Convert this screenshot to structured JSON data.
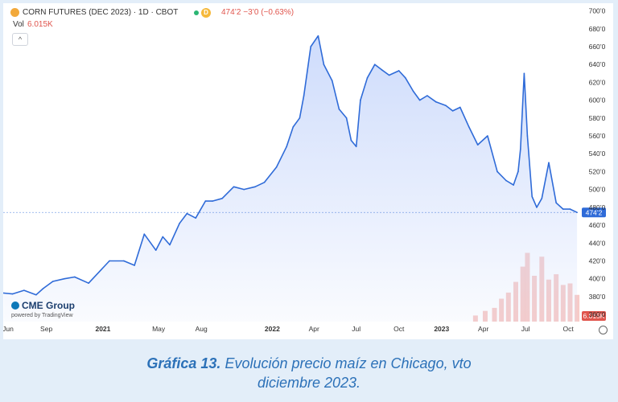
{
  "header": {
    "title": "CORN FUTURES (DEC 2023) · 1D · CBOT",
    "badge": "D",
    "price_change": "474’2 −3’0 (−0.63%)",
    "vol_label": "Vol",
    "vol_value": "6.015K",
    "collapse_symbol": "^"
  },
  "logo": {
    "name": "CME Group",
    "powered": "powered by TradingView"
  },
  "caption": {
    "prefix": "Gráfica 13.",
    "text_line1": " Evolución precio maíz en Chicago, vto",
    "text_line2": "diciembre 2023."
  },
  "colors": {
    "line": "#2f6bd8",
    "area": "#c9d8fb",
    "volume": "#f4b9b6",
    "price_tag": "#2f6bd8",
    "volume_tag": "#e0554d"
  },
  "chart_data": {
    "type": "area",
    "title": "CORN FUTURES (DEC 2023) · 1D · CBOT",
    "ylim": [
      352,
      705
    ],
    "y_ticks": [
      "700’0",
      "680’0",
      "660’0",
      "640’0",
      "620’0",
      "600’0",
      "580’0",
      "560’0",
      "540’0",
      "520’0",
      "500’0",
      "480’0",
      "460’0",
      "440’0",
      "420’0",
      "400’0",
      "380’0",
      "360’0"
    ],
    "y_tick_values": [
      700,
      680,
      660,
      640,
      620,
      600,
      580,
      560,
      540,
      520,
      500,
      480,
      460,
      440,
      420,
      400,
      380,
      360
    ],
    "x_ticks": [
      "Jun",
      "Sep",
      "2021",
      "May",
      "Aug",
      "2022",
      "Apr",
      "Jul",
      "Oct",
      "2023",
      "Apr",
      "Jul",
      "Oct"
    ],
    "x_tick_dates": [
      "2020-06-01",
      "2020-09-01",
      "2021-01-01",
      "2021-05-01",
      "2021-08-01",
      "2022-01-01",
      "2022-04-01",
      "2022-07-01",
      "2022-10-01",
      "2023-01-01",
      "2023-04-01",
      "2023-07-01",
      "2023-10-01"
    ],
    "x_range": [
      "2020-05-31",
      "2023-10-25"
    ],
    "last_price_label": "474’2",
    "last_price": 474.25,
    "volume_label": "6.015K",
    "series": [
      {
        "x": [
          "2020-06-01",
          "2020-06-20",
          "2020-07-15",
          "2020-08-10",
          "2020-08-25",
          "2020-09-15",
          "2020-10-10",
          "2020-11-01",
          "2020-12-01",
          "2021-01-15",
          "2021-02-15",
          "2021-03-10",
          "2021-03-31",
          "2021-04-25",
          "2021-05-10",
          "2021-05-25",
          "2021-06-15",
          "2021-07-01",
          "2021-07-20",
          "2021-08-10",
          "2021-08-25",
          "2021-09-15",
          "2021-10-10",
          "2021-11-01",
          "2021-11-25",
          "2021-12-15",
          "2022-01-10",
          "2022-02-01",
          "2022-02-15",
          "2022-03-01",
          "2022-03-10",
          "2022-03-25",
          "2022-04-10",
          "2022-04-22",
          "2022-05-10",
          "2022-05-25",
          "2022-06-10",
          "2022-06-20",
          "2022-07-01",
          "2022-07-10",
          "2022-07-25",
          "2022-08-10",
          "2022-08-25",
          "2022-09-10",
          "2022-10-01",
          "2022-10-15",
          "2022-11-01",
          "2022-11-15",
          "2022-12-01",
          "2022-12-20",
          "2023-01-10",
          "2023-01-25",
          "2023-02-10",
          "2023-03-01",
          "2023-03-20",
          "2023-04-10",
          "2023-05-01",
          "2023-05-20",
          "2023-06-05",
          "2023-06-15",
          "2023-06-20",
          "2023-06-28",
          "2023-07-05",
          "2023-07-15",
          "2023-07-25",
          "2023-08-05",
          "2023-08-20",
          "2023-09-05",
          "2023-09-20",
          "2023-10-05",
          "2023-10-20"
        ],
        "y": [
          384,
          383,
          387,
          382,
          389,
          397,
          400,
          402,
          395,
          420,
          420,
          415,
          450,
          432,
          447,
          438,
          462,
          473,
          468,
          487,
          487,
          490,
          503,
          500,
          503,
          508,
          525,
          548,
          570,
          580,
          605,
          660,
          672,
          640,
          622,
          590,
          580,
          555,
          548,
          600,
          625,
          640,
          634,
          628,
          633,
          625,
          610,
          600,
          605,
          598,
          594,
          588,
          592,
          570,
          550,
          560,
          520,
          510,
          505,
          520,
          545,
          630,
          560,
          492,
          480,
          490,
          530,
          485,
          478,
          478,
          474.25
        ]
      }
    ],
    "volume": {
      "x": [
        "2023-03-15",
        "2023-04-05",
        "2023-04-25",
        "2023-05-10",
        "2023-05-25",
        "2023-06-10",
        "2023-06-25",
        "2023-07-05",
        "2023-07-20",
        "2023-08-05",
        "2023-08-20",
        "2023-09-05",
        "2023-09-20",
        "2023-10-05",
        "2023-10-20"
      ],
      "relative": [
        0.08,
        0.14,
        0.18,
        0.3,
        0.38,
        0.52,
        0.72,
        0.9,
        0.6,
        0.85,
        0.55,
        0.62,
        0.48,
        0.5,
        0.35
      ]
    }
  }
}
